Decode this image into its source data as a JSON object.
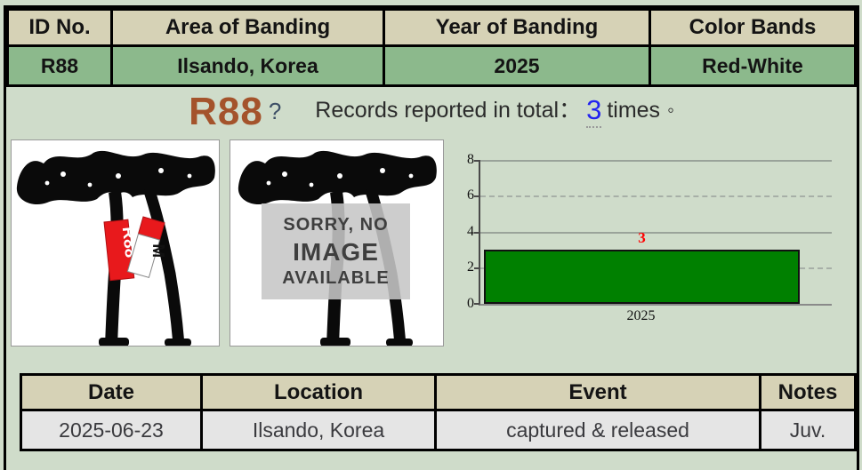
{
  "banding_table": {
    "headers": [
      "ID No.",
      "Area of Banding",
      "Year of Banding",
      "Color Bands"
    ],
    "values": [
      "R88",
      "Ilsando, Korea",
      "2025",
      "Red-White"
    ]
  },
  "title": {
    "bird_id": "R88",
    "question_mark": "?",
    "label": "Records reported in total",
    "colon": "：",
    "count": "3",
    "suffix": "times",
    "end_mark": "◦"
  },
  "images": {
    "left_band_label": "R88",
    "right_band_label": "M",
    "no_image_line1": "SORRY, NO",
    "no_image_line2": "IMAGE",
    "no_image_line3": "AVAILABLE"
  },
  "chart_data": {
    "type": "bar",
    "title": "",
    "categories": [
      "2025"
    ],
    "values": [
      3
    ],
    "value_labels": [
      "3"
    ],
    "xlabel": "",
    "ylabel": "",
    "ylim": [
      0,
      8
    ],
    "yticks": [
      0,
      2,
      4,
      6,
      8
    ],
    "grid": "horizontal: solid lines at 0, 4, 8; dashed lines at 2, 6",
    "legend": "none",
    "bar_color": "#008000",
    "value_label_color": "#ff0000"
  },
  "records_table": {
    "headers": [
      "Date",
      "Location",
      "Event",
      "Notes"
    ],
    "rows": [
      [
        "2025-06-23",
        "Ilsando, Korea",
        "captured & released",
        "Juv."
      ]
    ]
  },
  "colors": {
    "page_bg": "#cfdcca",
    "table_header_bg": "#d6d2b6",
    "banding_value_bg": "#8cb98c",
    "record_row_bg": "#e5e5e5",
    "bird_id_brown": "#a4532b",
    "count_blue": "#2323f0",
    "bar_green": "#008000",
    "value_red": "#ff0000",
    "band_red": "#e8191c"
  }
}
